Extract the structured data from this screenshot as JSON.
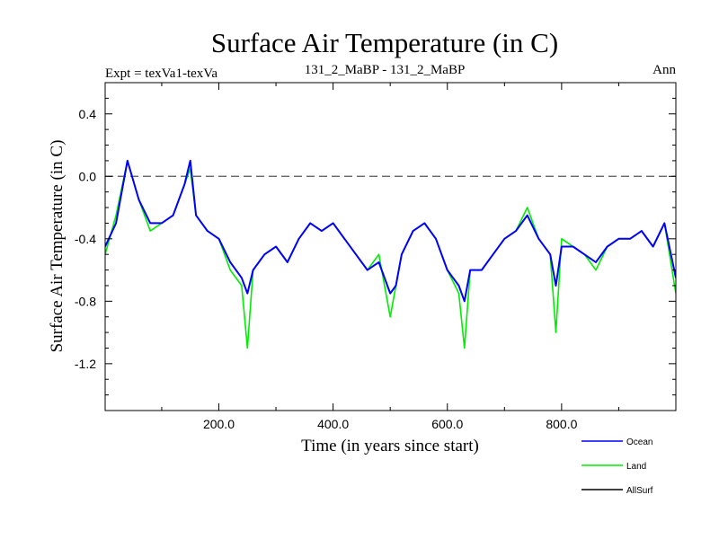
{
  "chart_data": {
    "type": "line",
    "title": "Surface Air Temperature (in C)",
    "subtitle_left": "Expt = texVa1-texVa",
    "subtitle_center": "131_2_MaBP - 131_2_MaBP",
    "subtitle_right": "Ann",
    "xlabel": "Time (in years since start)",
    "ylabel": "Surface Air Temperature (in C)",
    "xlim": [
      1,
      1000
    ],
    "ylim": [
      -1.5,
      0.6
    ],
    "xticks": [
      200,
      400,
      600,
      800
    ],
    "xtick_labels": [
      "200.0",
      "400.0",
      "600.0",
      "800.0"
    ],
    "yticks": [
      0.4,
      0.0,
      -0.4,
      -0.8,
      -1.2
    ],
    "ytick_labels": [
      "0.4",
      "0.0",
      "-0.4",
      "-0.8",
      "-1.2"
    ],
    "reference_line": 0.0,
    "legend_position": "bottom-right",
    "series": [
      {
        "name": "Land",
        "color": "#00ee00",
        "x": [
          1,
          20,
          40,
          60,
          80,
          100,
          120,
          140,
          150,
          160,
          180,
          200,
          220,
          240,
          250,
          260,
          280,
          300,
          320,
          340,
          360,
          380,
          400,
          420,
          440,
          460,
          480,
          500,
          510,
          520,
          540,
          560,
          580,
          600,
          620,
          630,
          640,
          660,
          680,
          700,
          720,
          740,
          760,
          780,
          790,
          800,
          820,
          840,
          860,
          880,
          900,
          920,
          940,
          960,
          980,
          1000
        ],
        "values": [
          -0.5,
          -0.25,
          0.1,
          -0.15,
          -0.35,
          -0.3,
          -0.25,
          -0.05,
          0.05,
          -0.25,
          -0.35,
          -0.4,
          -0.6,
          -0.7,
          -1.1,
          -0.6,
          -0.5,
          -0.45,
          -0.55,
          -0.4,
          -0.3,
          -0.35,
          -0.3,
          -0.4,
          -0.5,
          -0.6,
          -0.5,
          -0.9,
          -0.7,
          -0.5,
          -0.35,
          -0.3,
          -0.4,
          -0.6,
          -0.75,
          -1.1,
          -0.6,
          -0.6,
          -0.5,
          -0.4,
          -0.35,
          -0.2,
          -0.4,
          -0.5,
          -1.0,
          -0.4,
          -0.45,
          -0.5,
          -0.6,
          -0.45,
          -0.4,
          -0.4,
          -0.35,
          -0.45,
          -0.3,
          -0.75
        ]
      },
      {
        "name": "Ocean",
        "color": "#0000ff",
        "x": [
          1,
          20,
          40,
          60,
          80,
          100,
          120,
          140,
          150,
          160,
          180,
          200,
          220,
          240,
          250,
          260,
          280,
          300,
          320,
          340,
          360,
          380,
          400,
          420,
          440,
          460,
          480,
          500,
          510,
          520,
          540,
          560,
          580,
          600,
          620,
          630,
          640,
          660,
          680,
          700,
          720,
          740,
          760,
          780,
          790,
          800,
          820,
          840,
          860,
          880,
          900,
          920,
          940,
          960,
          980,
          1000
        ],
        "values": [
          -0.45,
          -0.3,
          0.1,
          -0.15,
          -0.3,
          -0.3,
          -0.25,
          -0.05,
          0.1,
          -0.25,
          -0.35,
          -0.4,
          -0.55,
          -0.65,
          -0.75,
          -0.6,
          -0.5,
          -0.45,
          -0.55,
          -0.4,
          -0.3,
          -0.35,
          -0.3,
          -0.4,
          -0.5,
          -0.6,
          -0.55,
          -0.75,
          -0.7,
          -0.5,
          -0.35,
          -0.3,
          -0.4,
          -0.6,
          -0.7,
          -0.8,
          -0.6,
          -0.6,
          -0.5,
          -0.4,
          -0.35,
          -0.25,
          -0.4,
          -0.5,
          -0.7,
          -0.45,
          -0.45,
          -0.5,
          -0.55,
          -0.45,
          -0.4,
          -0.4,
          -0.35,
          -0.45,
          -0.3,
          -0.65
        ]
      },
      {
        "name": "AllSurf",
        "color": "#000000",
        "x": [],
        "values": []
      }
    ]
  }
}
